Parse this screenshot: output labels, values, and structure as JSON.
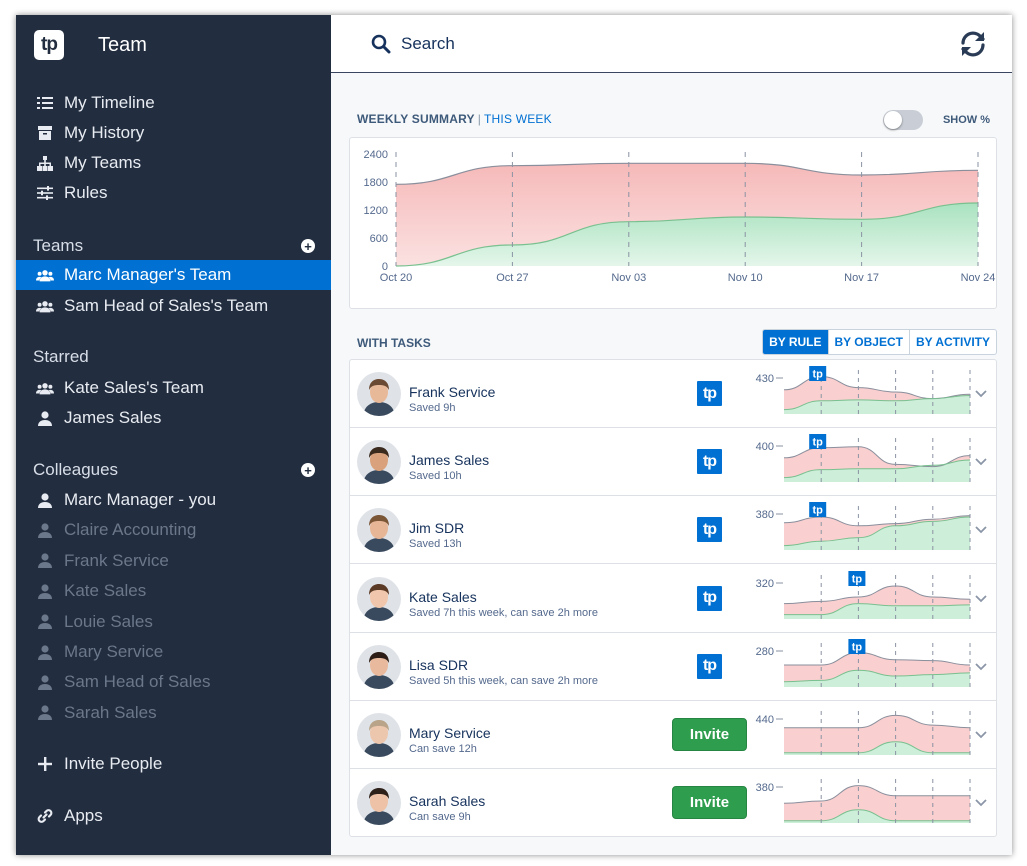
{
  "sidebar": {
    "brand_logo": "tp",
    "title": "Team",
    "nav": [
      {
        "label": "My Timeline",
        "icon": "timeline-icon"
      },
      {
        "label": "My History",
        "icon": "archive-icon"
      },
      {
        "label": "My Teams",
        "icon": "hierarchy-icon"
      },
      {
        "label": "Rules",
        "icon": "sliders-icon"
      }
    ],
    "teams_heading": "Teams",
    "teams": [
      {
        "label": "Marc Manager's Team",
        "active": true
      },
      {
        "label": "Sam Head of Sales's Team",
        "active": false
      }
    ],
    "starred_heading": "Starred",
    "starred": [
      {
        "label": "Kate Sales's Team",
        "icon": "group-icon"
      },
      {
        "label": "James Sales",
        "icon": "user-icon"
      }
    ],
    "colleagues_heading": "Colleagues",
    "colleagues": [
      {
        "label": "Marc Manager - you",
        "dim": false
      },
      {
        "label": "Claire Accounting",
        "dim": true
      },
      {
        "label": "Frank Service",
        "dim": true
      },
      {
        "label": "Kate Sales",
        "dim": true
      },
      {
        "label": "Louie Sales",
        "dim": true
      },
      {
        "label": "Mary Service",
        "dim": true
      },
      {
        "label": "Sam Head of Sales",
        "dim": true
      },
      {
        "label": "Sarah Sales",
        "dim": true
      }
    ],
    "invite_label": "Invite People",
    "apps_label": "Apps"
  },
  "topbar": {
    "search_label": "Search"
  },
  "summary": {
    "title": "WEEKLY SUMMARY",
    "separator": "|",
    "period": "THIS WEEK",
    "toggle_label": "SHOW %",
    "toggle_on": false
  },
  "chart_data": {
    "type": "area",
    "x": [
      "Oct 20",
      "Oct 27",
      "Nov 03",
      "Nov 10",
      "Nov 17",
      "Nov 24"
    ],
    "yticks": [
      0,
      600,
      1200,
      1800,
      2400
    ],
    "ylim": [
      0,
      2400
    ],
    "series": [
      {
        "values": [
          1750,
          2150,
          2200,
          2200,
          1950,
          2050
        ],
        "color": "#f7c9c9"
      },
      {
        "values": [
          0,
          450,
          950,
          1050,
          1000,
          1350
        ],
        "color": "#c6ecd4"
      }
    ]
  },
  "tasks": {
    "title": "WITH TASKS",
    "segments": [
      {
        "label": "BY RULE",
        "on": true
      },
      {
        "label": "BY OBJECT",
        "on": false
      },
      {
        "label": "BY ACTIVITY",
        "on": false
      }
    ],
    "invite_button": "Invite",
    "badge_text": "tp",
    "rows": [
      {
        "name": "Frank Service",
        "sub": "Saved 9h",
        "action": "badge",
        "peak": "430",
        "skin": "#e8b999",
        "hair": "#6b4a33",
        "total": [
          0.55,
          0.85,
          0.6,
          0.5,
          0.35,
          0.45
        ],
        "green": [
          0.1,
          0.3,
          0.32,
          0.3,
          0.35,
          0.42
        ],
        "marker": 1
      },
      {
        "name": "James Sales",
        "sub": "Saved 10h",
        "action": "badge",
        "peak": "400",
        "skin": "#d9a27c",
        "hair": "#3b2a1e",
        "total": [
          0.55,
          0.78,
          0.8,
          0.4,
          0.35,
          0.6
        ],
        "green": [
          0.1,
          0.28,
          0.3,
          0.3,
          0.38,
          0.5
        ],
        "marker": 1
      },
      {
        "name": "Jim SDR",
        "sub": "Saved 13h",
        "action": "badge",
        "peak": "380",
        "skin": "#e6b696",
        "hair": "#7a5637",
        "total": [
          0.62,
          0.75,
          0.55,
          0.6,
          0.7,
          0.78
        ],
        "green": [
          0.1,
          0.2,
          0.28,
          0.55,
          0.65,
          0.75
        ],
        "marker": 1
      },
      {
        "name": "Kate Sales",
        "sub": "Saved 7h this week, can save 2h more",
        "action": "badge",
        "peak": "320",
        "skin": "#f0c7ad",
        "hair": "#5b3a26",
        "total": [
          0.35,
          0.4,
          0.5,
          0.75,
          0.5,
          0.45
        ],
        "green": [
          0.1,
          0.1,
          0.35,
          0.3,
          0.3,
          0.32
        ],
        "marker": 2
      },
      {
        "name": "Lisa SDR",
        "sub": "Saved 5h this week, can save 2h more",
        "action": "badge",
        "peak": "280",
        "skin": "#e8b99c",
        "hair": "#2b1d15",
        "total": [
          0.5,
          0.5,
          0.78,
          0.62,
          0.6,
          0.5
        ],
        "green": [
          0.12,
          0.15,
          0.38,
          0.25,
          0.28,
          0.32
        ],
        "marker": 2
      },
      {
        "name": "Mary Service",
        "sub": "Can save 12h",
        "action": "invite",
        "peak": "440",
        "skin": "#edc7ad",
        "hair": "#b9a48a",
        "total": [
          0.62,
          0.62,
          0.62,
          0.9,
          0.68,
          0.62
        ],
        "green": [
          0.05,
          0.05,
          0.05,
          0.3,
          0.05,
          0.05
        ],
        "marker": -1
      },
      {
        "name": "Sarah Sales",
        "sub": "Can save 9h",
        "action": "invite",
        "peak": "380",
        "skin": "#eec2a6",
        "hair": "#2e211a",
        "total": [
          0.45,
          0.5,
          0.85,
          0.62,
          0.62,
          0.62
        ],
        "green": [
          0.05,
          0.05,
          0.3,
          0.05,
          0.05,
          0.05
        ],
        "marker": -1
      }
    ]
  }
}
